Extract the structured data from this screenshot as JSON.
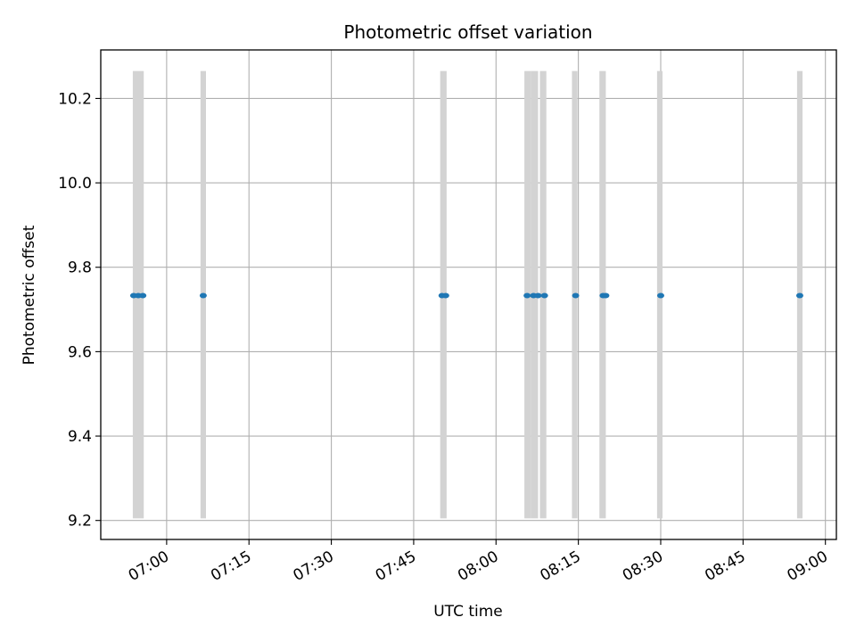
{
  "chart_data": {
    "type": "scatter",
    "title": "Photometric offset variation",
    "xlabel": "UTC time",
    "ylabel": "Photometric offset",
    "x_axis_type": "time",
    "xlim": [
      "06:48",
      "09:02"
    ],
    "ylim": [
      9.155,
      10.315
    ],
    "x_ticks": [
      "07:00",
      "07:15",
      "07:30",
      "07:45",
      "08:00",
      "08:15",
      "08:30",
      "08:45",
      "09:00"
    ],
    "y_ticks": [
      9.2,
      9.4,
      9.6,
      9.8,
      10.0,
      10.2
    ],
    "y_tick_labels": [
      "9.2",
      "9.4",
      "9.6",
      "9.8",
      "10.0",
      "10.2"
    ],
    "grid": true,
    "series_color": "#1f77b4",
    "band_color": "#d3d3d3",
    "band_range": [
      9.205,
      10.265
    ],
    "points": [
      {
        "x": "06:54:00",
        "y": 9.733
      },
      {
        "x": "06:54:50",
        "y": 9.733
      },
      {
        "x": "06:55:40",
        "y": 9.733
      },
      {
        "x": "07:06:40",
        "y": 9.733
      },
      {
        "x": "07:50:10",
        "y": 9.733
      },
      {
        "x": "07:50:50",
        "y": 9.733
      },
      {
        "x": "08:05:40",
        "y": 9.733
      },
      {
        "x": "08:06:50",
        "y": 9.733
      },
      {
        "x": "08:07:40",
        "y": 9.733
      },
      {
        "x": "08:08:50",
        "y": 9.733
      },
      {
        "x": "08:14:30",
        "y": 9.733
      },
      {
        "x": "08:19:30",
        "y": 9.733
      },
      {
        "x": "08:20:00",
        "y": 9.733
      },
      {
        "x": "08:30:00",
        "y": 9.733
      },
      {
        "x": "08:55:20",
        "y": 9.733
      }
    ],
    "bands": [
      {
        "start": "06:53:50",
        "end": "06:55:50"
      },
      {
        "start": "07:06:10",
        "end": "07:07:10"
      },
      {
        "start": "07:49:50",
        "end": "07:51:00"
      },
      {
        "start": "08:05:10",
        "end": "08:06:20"
      },
      {
        "start": "08:06:20",
        "end": "08:07:40"
      },
      {
        "start": "08:08:00",
        "end": "08:09:10"
      },
      {
        "start": "08:13:50",
        "end": "08:14:50"
      },
      {
        "start": "08:18:50",
        "end": "08:20:00"
      },
      {
        "start": "08:29:20",
        "end": "08:30:20"
      },
      {
        "start": "08:54:50",
        "end": "08:55:50"
      }
    ]
  }
}
